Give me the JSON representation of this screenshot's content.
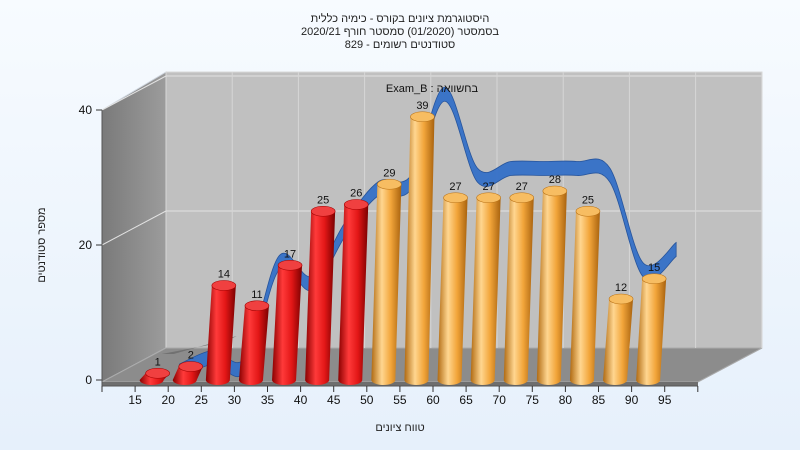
{
  "chart_data": {
    "type": "bar",
    "title_lines": [
      "היסטוגרמת ציונים בקורס - כימיה כללית",
      "בסמסטר  (01/2020)  סמסטר חורף  2020/21",
      "סטודנטים רשומים - 829"
    ],
    "xlabel": "טווח ציונים",
    "ylabel": "מספר סטודנטים",
    "x_ticks": [
      "15",
      "20",
      "25",
      "30",
      "35",
      "40",
      "45",
      "50",
      "55",
      "60",
      "65",
      "70",
      "75",
      "80",
      "85",
      "90",
      "95"
    ],
    "y_ticks": [
      "0",
      "20",
      "40"
    ],
    "ylim": [
      0,
      40
    ],
    "legend_label": "Exam_B : בחשוואה",
    "bars": [
      {
        "value": 1,
        "label": "1",
        "color": "red"
      },
      {
        "value": 2,
        "label": "2",
        "color": "red"
      },
      {
        "value": 14,
        "label": "14",
        "color": "red"
      },
      {
        "value": 11,
        "label": "11",
        "color": "red"
      },
      {
        "value": 17,
        "label": "17",
        "color": "red"
      },
      {
        "value": 25,
        "label": "25",
        "color": "red"
      },
      {
        "value": 26,
        "label": "26",
        "color": "red"
      },
      {
        "value": 29,
        "label": "29",
        "color": "orange"
      },
      {
        "value": 39,
        "label": "39",
        "color": "orange"
      },
      {
        "value": 27,
        "label": "27",
        "color": "orange"
      },
      {
        "value": 27,
        "label": "27",
        "color": "orange"
      },
      {
        "value": 27,
        "label": "27",
        "color": "orange"
      },
      {
        "value": 28,
        "label": "28",
        "color": "orange"
      },
      {
        "value": 25,
        "label": "25",
        "color": "orange"
      },
      {
        "value": 12,
        "label": "12",
        "color": "orange"
      },
      {
        "value": 15,
        "label": "15",
        "color": "orange"
      }
    ],
    "comparison_series": [
      0,
      2,
      1,
      16,
      13,
      21,
      27,
      28,
      41,
      29,
      30,
      30,
      30,
      29,
      15,
      18
    ],
    "colors": {
      "red": "#e01818",
      "orange": "#f2a030",
      "comparison": "#3470c8"
    }
  }
}
